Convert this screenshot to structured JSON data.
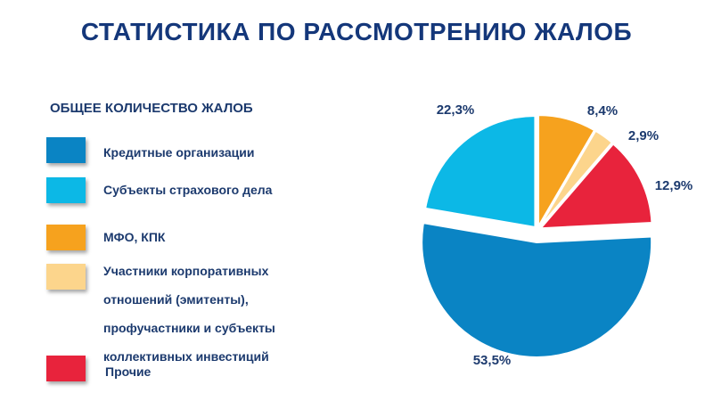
{
  "page": {
    "title": "СТАТИСТИКА ПО РАССМОТРЕНИЮ ЖАЛОБ"
  },
  "legend": {
    "title": "ОБЩЕЕ КОЛИЧЕСТВО ЖАЛОБ",
    "items": [
      {
        "label": "Кредитные организации"
      },
      {
        "label": "Субъекты страхового дела"
      },
      {
        "label": "МФО, КПК"
      },
      {
        "lines": [
          "Участники корпоративных",
          "отношений (эмитенты),",
          "профучастники и субъекты",
          "коллективных инвестиций"
        ]
      },
      {
        "label": "Прочие"
      }
    ]
  },
  "chart_data": {
    "type": "pie",
    "title": "",
    "slices": [
      {
        "name": "Кредитные организации",
        "value": 53.5,
        "label": "53,5%",
        "color": "#0a84c4"
      },
      {
        "name": "Субъекты страхового дела",
        "value": 22.3,
        "label": "22,3%",
        "color": "#0cb8e6"
      },
      {
        "name": "МФО, КПК",
        "value": 8.4,
        "label": "8,4%",
        "color": "#f6a21e"
      },
      {
        "name": "Участники корпоративных отношений (эмитенты), профучастники и субъекты коллективных инвестиций",
        "value": 2.9,
        "label": "2,9%",
        "color": "#fcd58c"
      },
      {
        "name": "Прочие",
        "value": 12.9,
        "label": "12,9%",
        "color": "#e8233c"
      }
    ],
    "exploded_slice": "Кредитные организации",
    "legend_position": "left"
  }
}
